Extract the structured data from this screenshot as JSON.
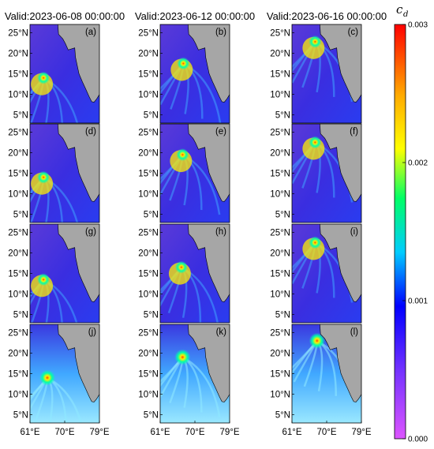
{
  "chart_data": {
    "type": "heatmap",
    "column_titles": [
      "Valid:2023-06-08 00:00:00",
      "Valid:2023-06-12 00:00:00",
      "Valid:2023-06-16 00:00:00"
    ],
    "panel_labels": [
      "(a)",
      "(b)",
      "(c)",
      "(d)",
      "(e)",
      "(f)",
      "(g)",
      "(h)",
      "(i)",
      "(j)",
      "(k)",
      "(l)"
    ],
    "x_ticks": [
      "61°E",
      "70°E",
      "79°E"
    ],
    "y_ticks": [
      "25°N",
      "20°N",
      "15°N",
      "10°N",
      "5°N"
    ],
    "lon_range": [
      61,
      79
    ],
    "lat_range": [
      3,
      27
    ],
    "colorbar": {
      "label": "c",
      "label_sub": "d",
      "range": [
        0.0,
        0.003
      ],
      "ticks": [
        "0.003",
        "0.002",
        "0.001",
        "0.000"
      ],
      "tick_values": [
        0.003,
        0.002,
        0.001,
        0.0
      ],
      "colormap": [
        "#ff0000",
        "#ff8800",
        "#ffee00",
        "#00ffaa",
        "#00ccff",
        "#0000ff",
        "#7a40ff",
        "#dd55ff"
      ]
    },
    "land_color": "#a6a6a6",
    "cyclone_centers": [
      {
        "panel": "(a)",
        "lon": 64.5,
        "lat": 14
      },
      {
        "panel": "(b)",
        "lon": 67,
        "lat": 17.5
      },
      {
        "panel": "(c)",
        "lon": 67,
        "lat": 22.8
      },
      {
        "panel": "(d)",
        "lon": 64.5,
        "lat": 14
      },
      {
        "panel": "(e)",
        "lon": 66.8,
        "lat": 19.5
      },
      {
        "panel": "(f)",
        "lon": 67,
        "lat": 22.5
      },
      {
        "panel": "(g)",
        "lon": 64.5,
        "lat": 13.5
      },
      {
        "panel": "(h)",
        "lon": 66.5,
        "lat": 16.5
      },
      {
        "panel": "(i)",
        "lon": 67,
        "lat": 22.5
      },
      {
        "panel": "(j)",
        "lon": 65.5,
        "lat": 14
      },
      {
        "panel": "(k)",
        "lon": 66.8,
        "lat": 19
      },
      {
        "panel": "(l)",
        "lon": 67.5,
        "lat": 23
      }
    ]
  }
}
